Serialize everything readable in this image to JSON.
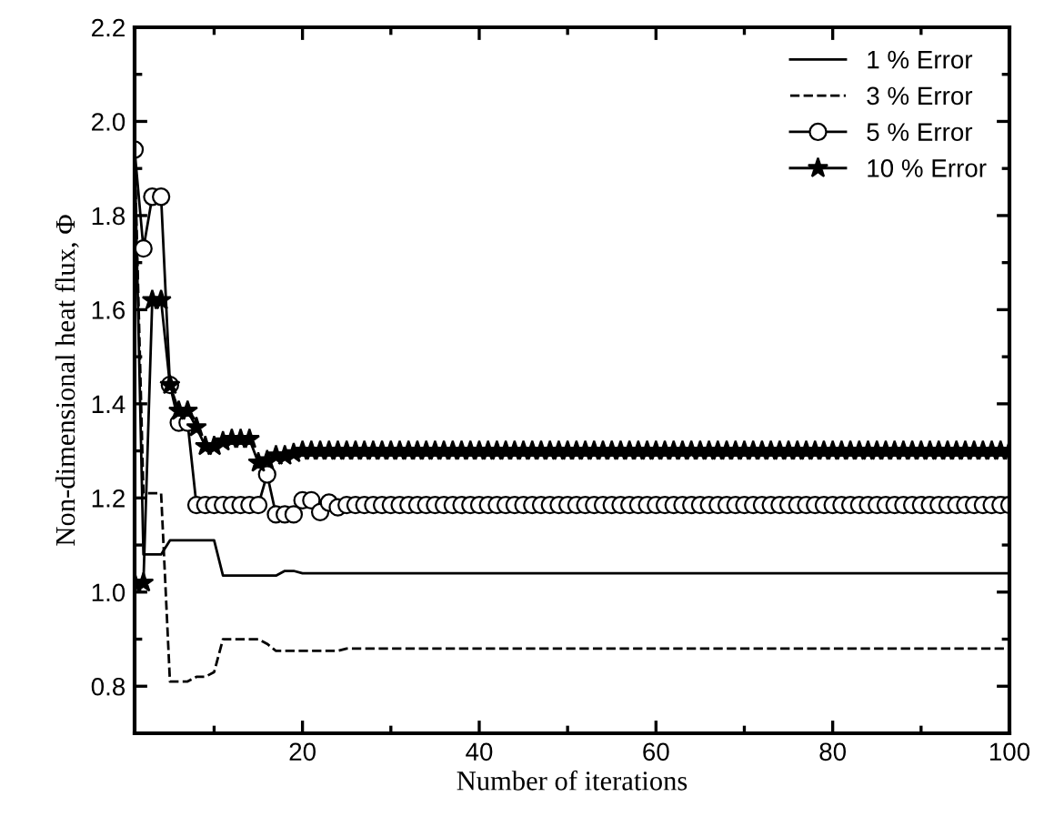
{
  "chart_data": {
    "type": "line",
    "xlabel": "Number of iterations",
    "ylabel": "Non-dimensional heat flux, Φ",
    "x": [
      1,
      2,
      3,
      4,
      5,
      6,
      7,
      8,
      9,
      10,
      11,
      12,
      13,
      14,
      15,
      16,
      17,
      18,
      19,
      20,
      21,
      22,
      23,
      24,
      25,
      26,
      27,
      28,
      29,
      30,
      31,
      32,
      33,
      34,
      35,
      36,
      37,
      38,
      39,
      40,
      41,
      42,
      43,
      44,
      45,
      46,
      47,
      48,
      49,
      50,
      51,
      52,
      53,
      54,
      55,
      56,
      57,
      58,
      59,
      60,
      61,
      62,
      63,
      64,
      65,
      66,
      67,
      68,
      69,
      70,
      71,
      72,
      73,
      74,
      75,
      76,
      77,
      78,
      79,
      80,
      81,
      82,
      83,
      84,
      85,
      86,
      87,
      88,
      89,
      90,
      91,
      92,
      93,
      94,
      95,
      96,
      97,
      98,
      99,
      100
    ],
    "xlim": [
      1,
      100
    ],
    "xticks": [
      20,
      40,
      60,
      80,
      100
    ],
    "ylim": [
      0.7,
      2.2
    ],
    "yticks": [
      0.8,
      {
        "value": 1,
        "label": "1.0"
      },
      1.2,
      1.4,
      1.6,
      1.8,
      {
        "value": 2,
        "label": "2.0"
      },
      2.2
    ],
    "grid": false,
    "legend": "top right",
    "series": [
      {
        "name": "1 % Error",
        "color": "#000000",
        "line_style": "solid",
        "marker": "none",
        "values": [
          1.94,
          1.08,
          1.08,
          1.08,
          1.11,
          1.11,
          1.11,
          1.11,
          1.11,
          1.11,
          1.035,
          1.035,
          1.035,
          1.035,
          1.035,
          1.035,
          1.035,
          1.045,
          1.045,
          1.04,
          1.04,
          1.04,
          1.04,
          1.04,
          1.04,
          1.04,
          1.04,
          1.04,
          1.04,
          1.04,
          1.04,
          1.04,
          1.04,
          1.04,
          1.04,
          1.04,
          1.04,
          1.04,
          1.04,
          1.04,
          1.04,
          1.04,
          1.04,
          1.04,
          1.04,
          1.04,
          1.04,
          1.04,
          1.04,
          1.04,
          1.04,
          1.04,
          1.04,
          1.04,
          1.04,
          1.04,
          1.04,
          1.04,
          1.04,
          1.04,
          1.04,
          1.04,
          1.04,
          1.04,
          1.04,
          1.04,
          1.04,
          1.04,
          1.04,
          1.04,
          1.04,
          1.04,
          1.04,
          1.04,
          1.04,
          1.04,
          1.04,
          1.04,
          1.04,
          1.04,
          1.04,
          1.04,
          1.04,
          1.04,
          1.04,
          1.04,
          1.04,
          1.04,
          1.04,
          1.04,
          1.04,
          1.04,
          1.04,
          1.04,
          1.04,
          1.04,
          1.04,
          1.04,
          1.04,
          1.04
        ]
      },
      {
        "name": "3 % Error",
        "color": "#000000",
        "line_style": "dashed",
        "marker": "none",
        "values": [
          1.94,
          1.21,
          1.21,
          1.21,
          0.81,
          0.81,
          0.81,
          0.82,
          0.82,
          0.83,
          0.9,
          0.9,
          0.9,
          0.9,
          0.9,
          0.89,
          0.875,
          0.875,
          0.875,
          0.875,
          0.875,
          0.875,
          0.875,
          0.875,
          0.88,
          0.88,
          0.88,
          0.88,
          0.88,
          0.88,
          0.88,
          0.88,
          0.88,
          0.88,
          0.88,
          0.88,
          0.88,
          0.88,
          0.88,
          0.88,
          0.88,
          0.88,
          0.88,
          0.88,
          0.88,
          0.88,
          0.88,
          0.88,
          0.88,
          0.88,
          0.88,
          0.88,
          0.88,
          0.88,
          0.88,
          0.88,
          0.88,
          0.88,
          0.88,
          0.88,
          0.88,
          0.88,
          0.88,
          0.88,
          0.88,
          0.88,
          0.88,
          0.88,
          0.88,
          0.88,
          0.88,
          0.88,
          0.88,
          0.88,
          0.88,
          0.88,
          0.88,
          0.88,
          0.88,
          0.88,
          0.88,
          0.88,
          0.88,
          0.88,
          0.88,
          0.88,
          0.88,
          0.88,
          0.88,
          0.88,
          0.88,
          0.88,
          0.88,
          0.88,
          0.88,
          0.88,
          0.88,
          0.88,
          0.88,
          0.88
        ]
      },
      {
        "name": "5 % Error",
        "color": "#000000",
        "line_style": "solid",
        "marker": "circle",
        "values": [
          1.94,
          1.73,
          1.84,
          1.84,
          1.44,
          1.36,
          1.36,
          1.185,
          1.185,
          1.185,
          1.185,
          1.185,
          1.185,
          1.185,
          1.185,
          1.25,
          1.165,
          1.165,
          1.165,
          1.195,
          1.195,
          1.17,
          1.19,
          1.18,
          1.185,
          1.185,
          1.185,
          1.185,
          1.185,
          1.185,
          1.185,
          1.185,
          1.185,
          1.185,
          1.185,
          1.185,
          1.185,
          1.185,
          1.185,
          1.185,
          1.185,
          1.185,
          1.185,
          1.185,
          1.185,
          1.185,
          1.185,
          1.185,
          1.185,
          1.185,
          1.185,
          1.185,
          1.185,
          1.185,
          1.185,
          1.185,
          1.185,
          1.185,
          1.185,
          1.185,
          1.185,
          1.185,
          1.185,
          1.185,
          1.185,
          1.185,
          1.185,
          1.185,
          1.185,
          1.185,
          1.185,
          1.185,
          1.185,
          1.185,
          1.185,
          1.185,
          1.185,
          1.185,
          1.185,
          1.185,
          1.185,
          1.185,
          1.185,
          1.185,
          1.185,
          1.185,
          1.185,
          1.185,
          1.185,
          1.185,
          1.185,
          1.185,
          1.185,
          1.185,
          1.185,
          1.185,
          1.185,
          1.185,
          1.185,
          1.185
        ]
      },
      {
        "name": "10 % Error",
        "color": "#000000",
        "line_style": "solid",
        "marker": "star",
        "values": [
          1.02,
          1.02,
          1.62,
          1.62,
          1.44,
          1.385,
          1.385,
          1.35,
          1.31,
          1.31,
          1.32,
          1.325,
          1.325,
          1.325,
          1.275,
          1.28,
          1.29,
          1.29,
          1.295,
          1.3,
          1.3,
          1.3,
          1.3,
          1.3,
          1.3,
          1.3,
          1.3,
          1.3,
          1.3,
          1.3,
          1.3,
          1.3,
          1.3,
          1.3,
          1.3,
          1.3,
          1.3,
          1.3,
          1.3,
          1.3,
          1.3,
          1.3,
          1.3,
          1.3,
          1.3,
          1.3,
          1.3,
          1.3,
          1.3,
          1.3,
          1.3,
          1.3,
          1.3,
          1.3,
          1.3,
          1.3,
          1.3,
          1.3,
          1.3,
          1.3,
          1.3,
          1.3,
          1.3,
          1.3,
          1.3,
          1.3,
          1.3,
          1.3,
          1.3,
          1.3,
          1.3,
          1.3,
          1.3,
          1.3,
          1.3,
          1.3,
          1.3,
          1.3,
          1.3,
          1.3,
          1.3,
          1.3,
          1.3,
          1.3,
          1.3,
          1.3,
          1.3,
          1.3,
          1.3,
          1.3,
          1.3,
          1.3,
          1.3,
          1.3,
          1.3,
          1.3,
          1.3,
          1.3,
          1.3,
          1.3
        ]
      }
    ]
  }
}
